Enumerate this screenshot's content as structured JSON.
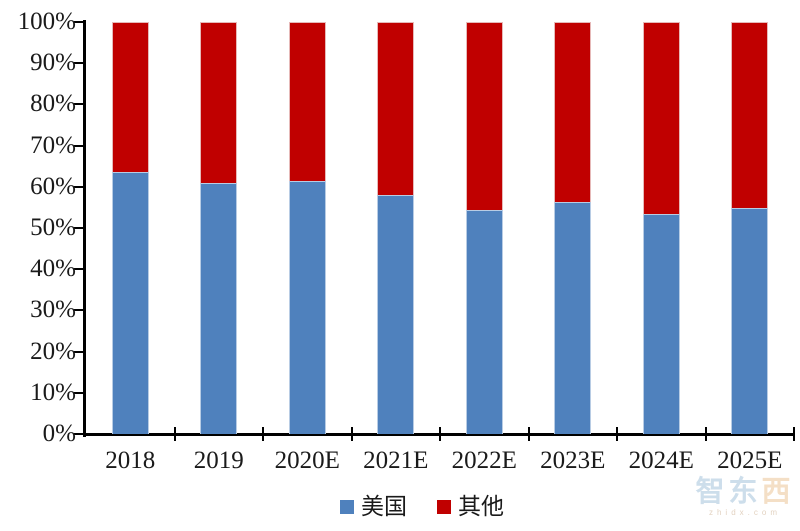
{
  "chart_data": {
    "type": "bar",
    "stacked": true,
    "orientation": "vertical",
    "categories": [
      "2018",
      "2019",
      "2020E",
      "2021E",
      "2022E",
      "2023E",
      "2024E",
      "2025E"
    ],
    "series": [
      {
        "name": "美国",
        "color": "#4F81BD",
        "border_color": "#B8CCE4",
        "values": [
          63.5,
          61.0,
          61.3,
          58.0,
          54.4,
          56.3,
          53.5,
          54.9
        ]
      },
      {
        "name": "其他",
        "color": "#C00000",
        "border_color": "#E6B9B8",
        "values": [
          36.5,
          39.0,
          38.7,
          42.0,
          45.6,
          43.7,
          46.5,
          45.1
        ]
      }
    ],
    "title": "",
    "xlabel": "",
    "ylabel": "",
    "ylim": [
      0,
      100
    ],
    "ytick_step": 10,
    "ytick_labels": [
      "0%",
      "10%",
      "20%",
      "30%",
      "40%",
      "50%",
      "60%",
      "70%",
      "80%",
      "90%",
      "100%"
    ],
    "grid": false,
    "legend_position": "bottom",
    "axis_color": "#000000"
  },
  "legend": {
    "items": [
      {
        "label": "美国",
        "color": "#4F81BD"
      },
      {
        "label": "其他",
        "color": "#C00000"
      }
    ]
  },
  "watermark": {
    "text_blue": "智东",
    "text_orange": "西",
    "subtext": "zhidx.com"
  }
}
